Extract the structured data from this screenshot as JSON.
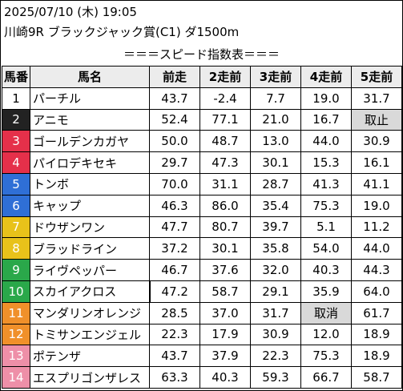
{
  "header": {
    "datetime": "2025/07/10 (木) 19:05",
    "race": "川崎9R ブラックジャック賞(C1) ダ1500m",
    "caption": "＝＝＝スピード指数表＝＝＝"
  },
  "columns": [
    "馬番",
    "馬名",
    "前走",
    "2走前",
    "3走前",
    "4走前",
    "5走前"
  ],
  "rows": [
    {
      "num": "1",
      "name": "パーチル",
      "v": [
        "43.7",
        "-2.4",
        "7.7",
        "19.0",
        "31.7"
      ],
      "numbg": "#ffffff",
      "numfg": "#000000"
    },
    {
      "num": "2",
      "name": "アニモ",
      "v": [
        "52.4",
        "77.1",
        "21.0",
        "16.7",
        "取止"
      ],
      "numbg": "#222222",
      "numfg": "#ffffff"
    },
    {
      "num": "3",
      "name": "ゴールデンカガヤ",
      "v": [
        "50.0",
        "48.7",
        "13.0",
        "44.0",
        "30.9"
      ],
      "numbg": "#e5304a",
      "numfg": "#ffffff"
    },
    {
      "num": "4",
      "name": "パイロデキセキ",
      "v": [
        "29.7",
        "47.3",
        "30.1",
        "15.3",
        "16.1"
      ],
      "numbg": "#e5304a",
      "numfg": "#ffffff"
    },
    {
      "num": "5",
      "name": "トンボ",
      "v": [
        "70.0",
        "31.1",
        "28.7",
        "41.3",
        "41.1"
      ],
      "numbg": "#2f6fd6",
      "numfg": "#ffffff"
    },
    {
      "num": "6",
      "name": "キャップ",
      "v": [
        "46.3",
        "86.0",
        "35.4",
        "75.3",
        "19.0"
      ],
      "numbg": "#2f6fd6",
      "numfg": "#ffffff"
    },
    {
      "num": "7",
      "name": "ドウザンワン",
      "v": [
        "47.7",
        "80.7",
        "39.7",
        "5.1",
        "11.2"
      ],
      "numbg": "#e8c21a",
      "numfg": "#ffffff"
    },
    {
      "num": "8",
      "name": "ブラッドライン",
      "v": [
        "37.2",
        "30.1",
        "35.8",
        "54.0",
        "44.0"
      ],
      "numbg": "#e8c21a",
      "numfg": "#ffffff"
    },
    {
      "num": "9",
      "name": "ライヴペッパー",
      "v": [
        "46.7",
        "37.6",
        "32.0",
        "40.3",
        "44.3"
      ],
      "numbg": "#2aa84a",
      "numfg": "#ffffff"
    },
    {
      "num": "10",
      "name": "スカイアクロス",
      "v": [
        "47.2",
        "58.7",
        "29.1",
        "35.9",
        "64.0"
      ],
      "numbg": "#2aa84a",
      "numfg": "#ffffff"
    },
    {
      "num": "11",
      "name": "マンダリンオレンジ",
      "v": [
        "28.5",
        "37.0",
        "31.7",
        "取消",
        "61.7"
      ],
      "numbg": "#f0902a",
      "numfg": "#ffffff"
    },
    {
      "num": "12",
      "name": "トミサンエンジェル",
      "v": [
        "22.3",
        "17.9",
        "30.9",
        "12.0",
        "18.9"
      ],
      "numbg": "#f0902a",
      "numfg": "#ffffff"
    },
    {
      "num": "13",
      "name": "ポテンザ",
      "v": [
        "43.7",
        "37.9",
        "22.3",
        "75.3",
        "18.9"
      ],
      "numbg": "#ee8fa8",
      "numfg": "#ffffff"
    },
    {
      "num": "14",
      "name": "エスプリゴンザレス",
      "v": [
        "63.3",
        "40.3",
        "59.3",
        "66.7",
        "58.7"
      ],
      "numbg": "#ee8fa8",
      "numfg": "#ffffff"
    }
  ]
}
